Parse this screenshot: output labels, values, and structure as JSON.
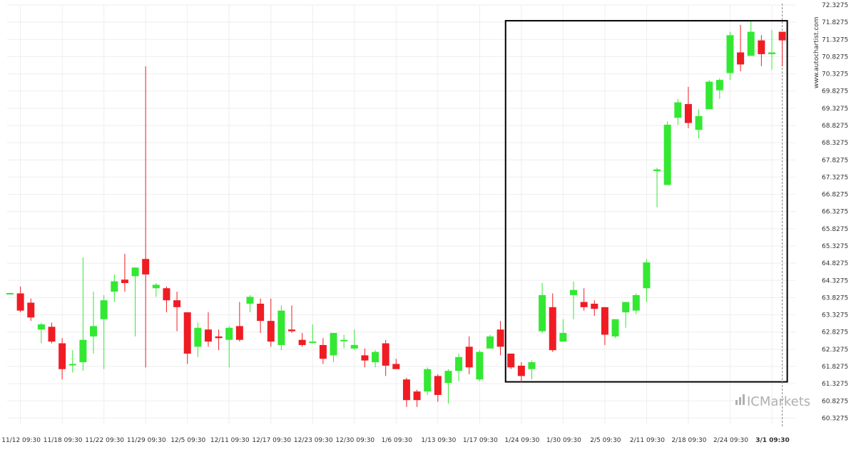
{
  "watermark": "www.autochartist.com",
  "brand": {
    "prefix": "IC",
    "suffix": "Markets"
  },
  "colors": {
    "up": "#33e833",
    "down": "#f01c24",
    "wick_up": "#33e833",
    "wick_down": "#f01c24",
    "grid": "#eeeeee",
    "box": "#000000"
  },
  "chart_data": {
    "type": "candlestick",
    "title": "",
    "xlabel": "",
    "ylabel": "",
    "ylim": [
      60.15,
      72.3275
    ],
    "grid": true,
    "y_ticks": [
      "72.3275",
      "71.8275",
      "71.3275",
      "70.8275",
      "70.3275",
      "69.8275",
      "69.3275",
      "68.8275",
      "68.3275",
      "67.8275",
      "67.3275",
      "66.8275",
      "66.3275",
      "65.8275",
      "65.3275",
      "64.8275",
      "64.3275",
      "63.8275",
      "63.3275",
      "62.8275",
      "62.3275",
      "61.8275",
      "61.3275",
      "60.8275",
      "60.3275"
    ],
    "x_ticks": [
      {
        "label": "11/12 09:30",
        "index": 1
      },
      {
        "label": "11/18 09:30",
        "index": 5
      },
      {
        "label": "11/22 09:30",
        "index": 9
      },
      {
        "label": "11/29 09:30",
        "index": 13
      },
      {
        "label": "12/5 09:30",
        "index": 17
      },
      {
        "label": "12/11 09:30",
        "index": 21
      },
      {
        "label": "12/17 09:30",
        "index": 25
      },
      {
        "label": "12/23 09:30",
        "index": 29
      },
      {
        "label": "12/30 09:30",
        "index": 33
      },
      {
        "label": "1/6 09:30",
        "index": 37
      },
      {
        "label": "1/13 09:30",
        "index": 41
      },
      {
        "label": "1/17 09:30",
        "index": 45
      },
      {
        "label": "1/24 09:30",
        "index": 49
      },
      {
        "label": "1/30 09:30",
        "index": 53
      },
      {
        "label": "2/5 09:30",
        "index": 57
      },
      {
        "label": "2/11 09:30",
        "index": 61
      },
      {
        "label": "2/18 09:30",
        "index": 65
      },
      {
        "label": "2/24 09:30",
        "index": 69
      },
      {
        "label": "3/1 09:30",
        "index": 73,
        "bold": true
      }
    ],
    "candles": [
      {
        "o": 63.95,
        "h": 63.97,
        "l": 63.95,
        "c": 63.96
      },
      {
        "o": 63.95,
        "h": 64.15,
        "l": 63.4,
        "c": 63.45
      },
      {
        "o": 63.68,
        "h": 63.8,
        "l": 63.15,
        "c": 63.25
      },
      {
        "o": 62.9,
        "h": 63.1,
        "l": 62.5,
        "c": 63.05
      },
      {
        "o": 62.98,
        "h": 63.1,
        "l": 62.5,
        "c": 62.55
      },
      {
        "o": 62.5,
        "h": 62.65,
        "l": 61.45,
        "c": 61.75
      },
      {
        "o": 61.9,
        "h": 62.3,
        "l": 61.65,
        "c": 61.9
      },
      {
        "o": 61.95,
        "h": 65.0,
        "l": 61.7,
        "c": 62.6
      },
      {
        "o": 62.7,
        "h": 64.0,
        "l": 62.2,
        "c": 63.0
      },
      {
        "o": 63.2,
        "h": 63.9,
        "l": 61.75,
        "c": 63.75
      },
      {
        "o": 64.0,
        "h": 64.5,
        "l": 63.7,
        "c": 64.3
      },
      {
        "o": 64.35,
        "h": 65.1,
        "l": 64.0,
        "c": 64.25
      },
      {
        "o": 64.45,
        "h": 64.7,
        "l": 62.7,
        "c": 64.7
      },
      {
        "o": 64.95,
        "h": 70.55,
        "l": 61.8,
        "c": 64.5
      },
      {
        "o": 64.1,
        "h": 64.25,
        "l": 63.85,
        "c": 64.2
      },
      {
        "o": 64.1,
        "h": 64.15,
        "l": 63.4,
        "c": 63.75
      },
      {
        "o": 63.75,
        "h": 64.0,
        "l": 62.85,
        "c": 63.55
      },
      {
        "o": 63.4,
        "h": 63.4,
        "l": 61.9,
        "c": 62.2
      },
      {
        "o": 62.4,
        "h": 63.1,
        "l": 62.1,
        "c": 62.95
      },
      {
        "o": 62.9,
        "h": 63.4,
        "l": 62.4,
        "c": 62.55
      },
      {
        "o": 62.7,
        "h": 62.9,
        "l": 62.3,
        "c": 62.65
      },
      {
        "o": 62.6,
        "h": 63.0,
        "l": 61.8,
        "c": 62.95
      },
      {
        "o": 63.0,
        "h": 63.7,
        "l": 62.55,
        "c": 62.6
      },
      {
        "o": 63.65,
        "h": 63.9,
        "l": 63.4,
        "c": 63.85
      },
      {
        "o": 63.65,
        "h": 63.8,
        "l": 62.8,
        "c": 63.15
      },
      {
        "o": 63.15,
        "h": 63.8,
        "l": 62.4,
        "c": 62.55
      },
      {
        "o": 62.45,
        "h": 63.6,
        "l": 62.3,
        "c": 63.45
      },
      {
        "o": 62.9,
        "h": 63.6,
        "l": 62.8,
        "c": 62.85
      },
      {
        "o": 62.6,
        "h": 62.8,
        "l": 62.4,
        "c": 62.45
      },
      {
        "o": 62.55,
        "h": 63.05,
        "l": 62.5,
        "c": 62.55
      },
      {
        "o": 62.45,
        "h": 62.65,
        "l": 61.9,
        "c": 62.05
      },
      {
        "o": 62.15,
        "h": 62.8,
        "l": 61.95,
        "c": 62.8
      },
      {
        "o": 62.6,
        "h": 62.75,
        "l": 62.35,
        "c": 62.6
      },
      {
        "o": 62.35,
        "h": 62.9,
        "l": 62.3,
        "c": 62.45
      },
      {
        "o": 62.15,
        "h": 62.35,
        "l": 61.8,
        "c": 62.0
      },
      {
        "o": 61.95,
        "h": 62.3,
        "l": 61.8,
        "c": 62.25
      },
      {
        "o": 62.5,
        "h": 62.6,
        "l": 61.55,
        "c": 61.85
      },
      {
        "o": 61.9,
        "h": 62.05,
        "l": 61.8,
        "c": 61.75
      },
      {
        "o": 61.45,
        "h": 61.5,
        "l": 60.65,
        "c": 60.85
      },
      {
        "o": 61.1,
        "h": 61.15,
        "l": 60.65,
        "c": 60.85
      },
      {
        "o": 61.1,
        "h": 61.8,
        "l": 61.0,
        "c": 61.75
      },
      {
        "o": 61.55,
        "h": 61.6,
        "l": 60.8,
        "c": 61.0
      },
      {
        "o": 61.35,
        "h": 61.75,
        "l": 60.75,
        "c": 61.7
      },
      {
        "o": 61.7,
        "h": 62.2,
        "l": 61.4,
        "c": 62.1
      },
      {
        "o": 62.4,
        "h": 62.7,
        "l": 61.6,
        "c": 61.8
      },
      {
        "o": 61.45,
        "h": 62.3,
        "l": 61.4,
        "c": 62.25
      },
      {
        "o": 62.35,
        "h": 62.75,
        "l": 62.35,
        "c": 62.7
      },
      {
        "o": 62.9,
        "h": 63.15,
        "l": 62.15,
        "c": 62.4
      },
      {
        "o": 62.2,
        "h": 62.2,
        "l": 61.75,
        "c": 61.8
      },
      {
        "o": 61.85,
        "h": 61.95,
        "l": 61.35,
        "c": 61.55
      },
      {
        "o": 61.75,
        "h": 62.0,
        "l": 61.45,
        "c": 61.95
      },
      {
        "o": 62.85,
        "h": 64.25,
        "l": 62.8,
        "c": 63.9
      },
      {
        "o": 63.55,
        "h": 63.95,
        "l": 62.25,
        "c": 62.3
      },
      {
        "o": 62.55,
        "h": 63.2,
        "l": 62.55,
        "c": 62.8
      },
      {
        "o": 63.9,
        "h": 64.3,
        "l": 63.2,
        "c": 64.05
      },
      {
        "o": 63.7,
        "h": 64.1,
        "l": 63.45,
        "c": 63.55
      },
      {
        "o": 63.65,
        "h": 63.75,
        "l": 63.3,
        "c": 63.5
      },
      {
        "o": 63.55,
        "h": 63.55,
        "l": 62.45,
        "c": 62.75
      },
      {
        "o": 62.7,
        "h": 63.2,
        "l": 62.65,
        "c": 63.2
      },
      {
        "o": 63.4,
        "h": 63.7,
        "l": 62.95,
        "c": 63.7
      },
      {
        "o": 63.45,
        "h": 63.95,
        "l": 63.35,
        "c": 63.9
      },
      {
        "o": 64.1,
        "h": 64.95,
        "l": 63.7,
        "c": 64.85
      },
      {
        "o": 67.5,
        "h": 67.6,
        "l": 66.45,
        "c": 67.55
      },
      {
        "o": 67.1,
        "h": 68.95,
        "l": 67.1,
        "c": 68.85
      },
      {
        "o": 69.05,
        "h": 69.6,
        "l": 68.85,
        "c": 69.5
      },
      {
        "o": 69.45,
        "h": 69.95,
        "l": 68.75,
        "c": 68.9
      },
      {
        "o": 68.7,
        "h": 69.3,
        "l": 68.45,
        "c": 69.1
      },
      {
        "o": 69.3,
        "h": 70.15,
        "l": 69.3,
        "c": 70.1
      },
      {
        "o": 69.85,
        "h": 70.2,
        "l": 69.6,
        "c": 70.15
      },
      {
        "o": 70.35,
        "h": 71.55,
        "l": 70.15,
        "c": 71.45
      },
      {
        "o": 70.95,
        "h": 71.75,
        "l": 70.4,
        "c": 70.6
      },
      {
        "o": 70.85,
        "h": 71.85,
        "l": 70.85,
        "c": 71.55
      },
      {
        "o": 71.3,
        "h": 71.45,
        "l": 70.55,
        "c": 70.9
      },
      {
        "o": 70.9,
        "h": 71.6,
        "l": 70.45,
        "c": 70.95
      },
      {
        "o": 71.55,
        "h": 71.55,
        "l": 70.55,
        "c": 71.3
      }
    ]
  }
}
